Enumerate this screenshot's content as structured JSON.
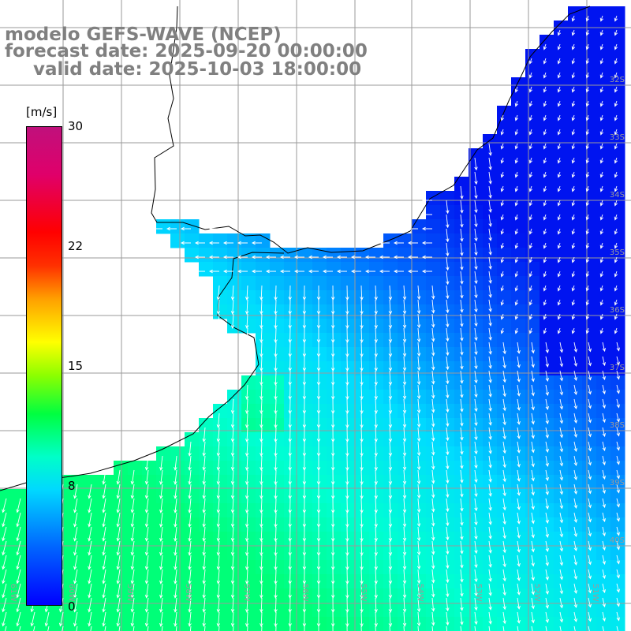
{
  "title": {
    "model": "modelo GEFS-WAVE (NCEP)",
    "forecast": "forecast date: 2025-09-20 00:00:00",
    "valid": "valid date: 2025-10-03 18:00:00"
  },
  "colorbar": {
    "unit": "[m/s]",
    "ticks": [
      "30",
      "22",
      "15",
      "8",
      "0"
    ],
    "colors": [
      "#0000ff",
      "#00d8ff",
      "#00ffc8",
      "#00ff40",
      "#ffff00",
      "#ff0000",
      "#c0107c"
    ]
  },
  "lat_labels": [
    "32S",
    "33S",
    "34S",
    "35S",
    "36S",
    "37S",
    "38S",
    "39S",
    "40S"
  ],
  "lon_labels": [
    "61W",
    "60W",
    "59W",
    "58W",
    "57W",
    "56W",
    "55W",
    "54W",
    "53W",
    "52W",
    "51W"
  ],
  "map_colors": {
    "land": "#ffffff",
    "grid": "#9a9a9a",
    "coast": "#000000",
    "arrow": "#ffffff"
  }
}
